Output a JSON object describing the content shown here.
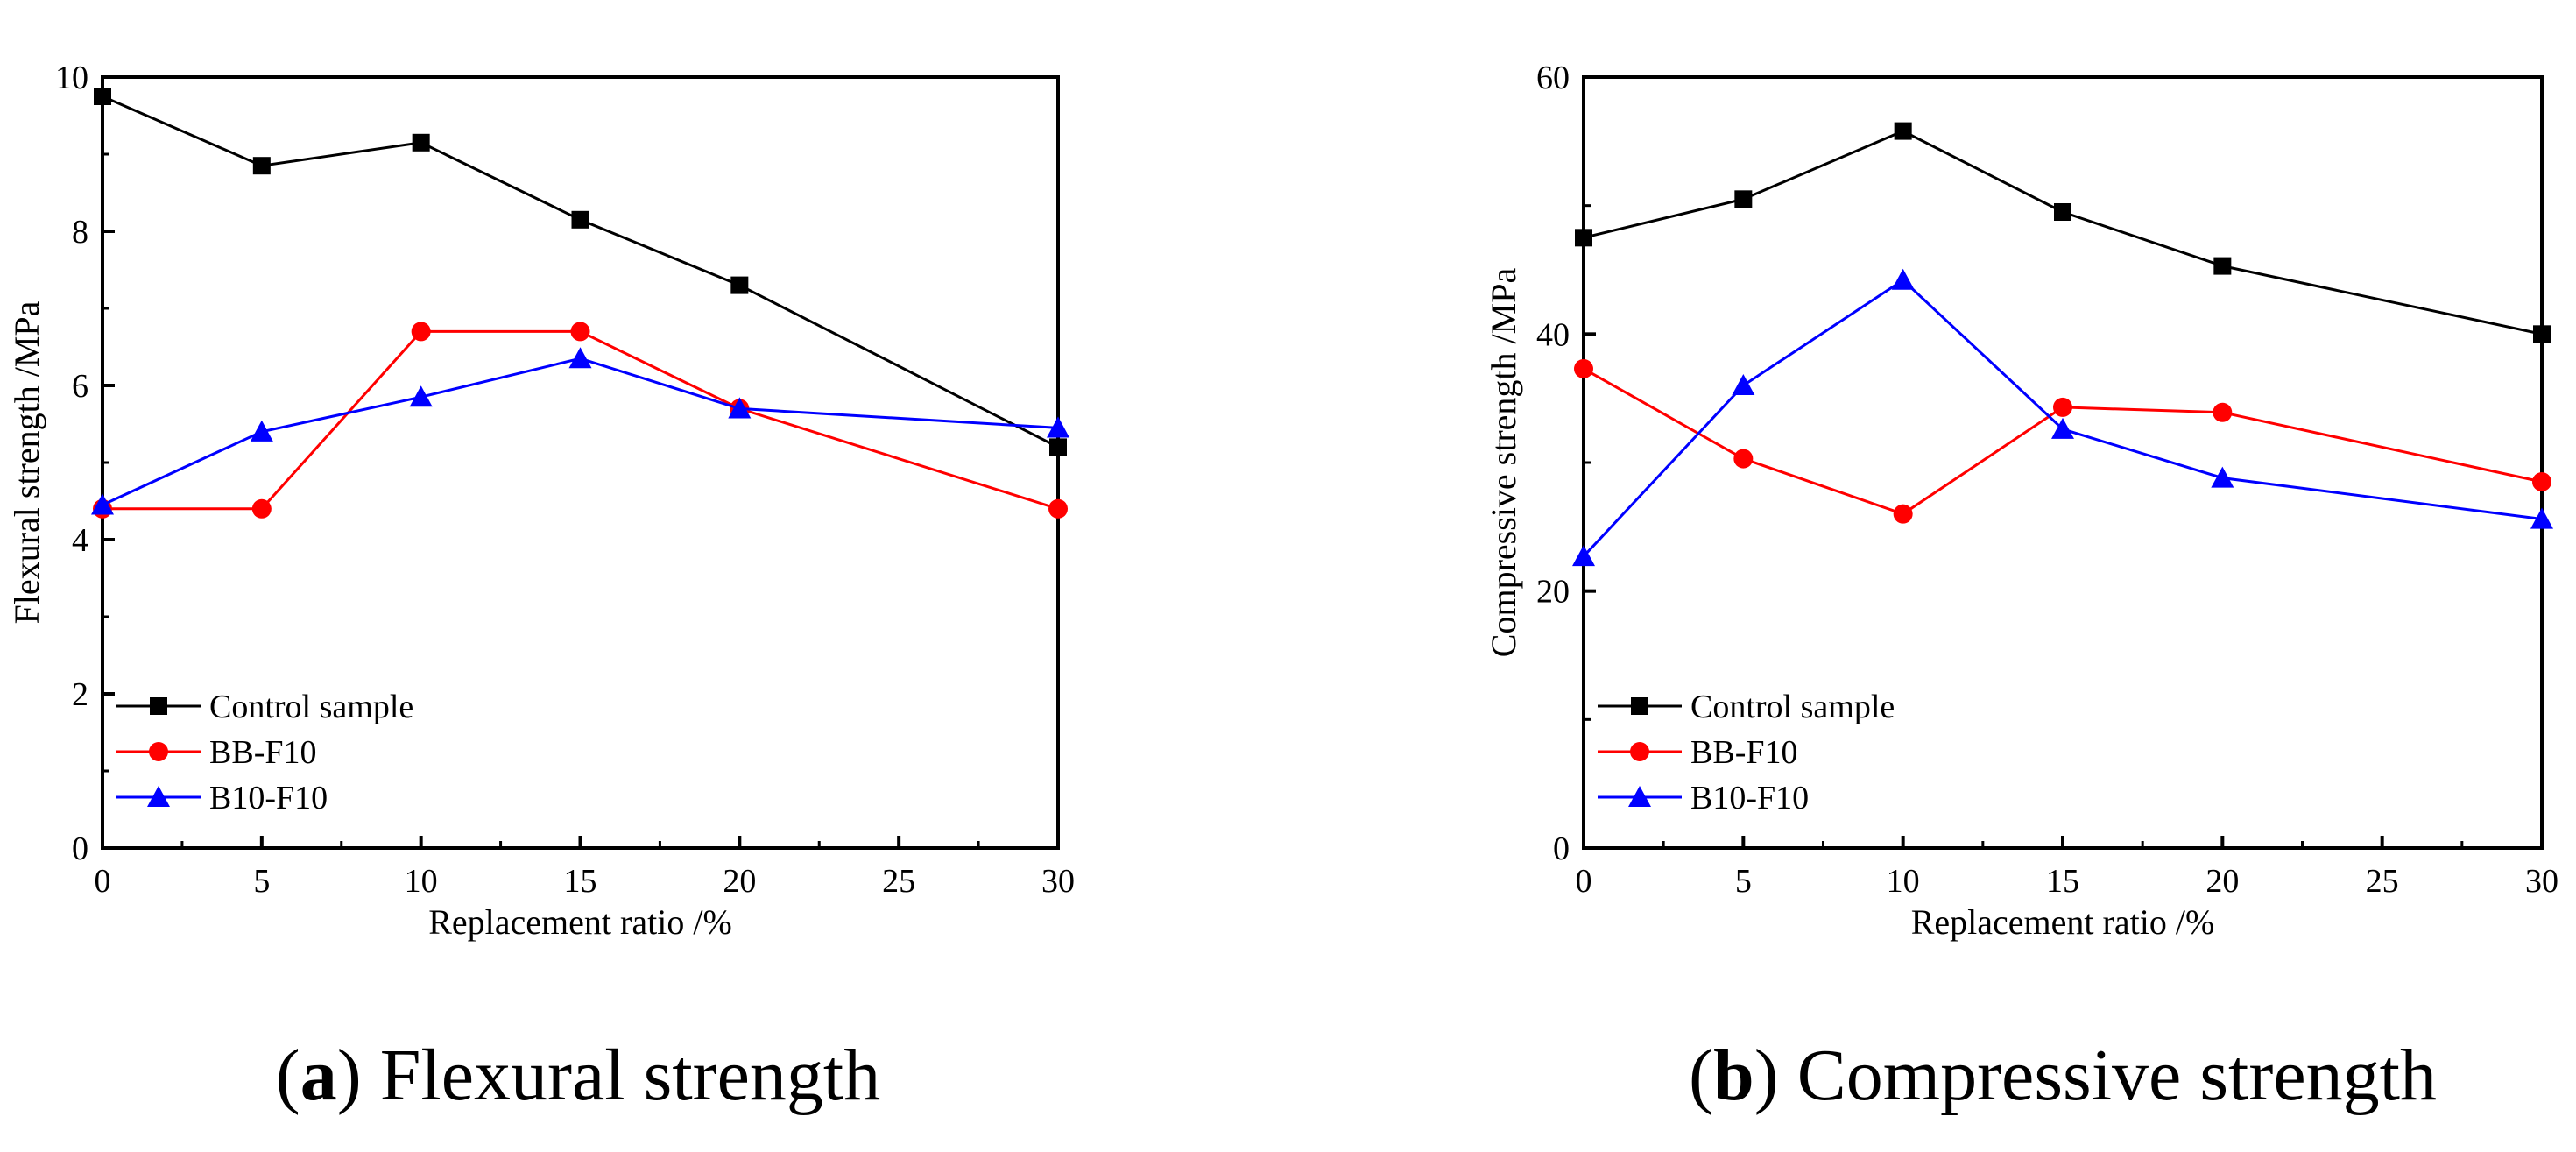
{
  "chart_data": [
    {
      "type": "line",
      "title": "",
      "xlabel": "Replacement ratio  /%",
      "ylabel": "Flexural strength /MPa",
      "xlim": [
        0,
        30
      ],
      "ylim": [
        0,
        10
      ],
      "xticks": [
        0,
        5,
        10,
        15,
        20,
        25,
        30
      ],
      "yticks": [
        0,
        2,
        4,
        6,
        8,
        10
      ],
      "x": [
        0,
        5,
        10,
        15,
        20,
        30
      ],
      "series": [
        {
          "name": "Control sample",
          "marker": "square",
          "color": "#000000",
          "values": [
            9.75,
            8.85,
            9.15,
            8.15,
            7.3,
            5.2
          ]
        },
        {
          "name": "BB-F10",
          "marker": "circle",
          "color": "#ff0000",
          "values": [
            4.4,
            4.4,
            6.7,
            6.7,
            5.7,
            4.4
          ]
        },
        {
          "name": "B10-F10",
          "marker": "triangle",
          "color": "#0000ff",
          "values": [
            4.45,
            5.4,
            5.85,
            6.35,
            5.7,
            5.45
          ]
        }
      ],
      "legend": "bottom-left",
      "caption": {
        "letter": "a",
        "text": "Flexural strength"
      }
    },
    {
      "type": "line",
      "title": "",
      "xlabel": "Replacement ratio  /%",
      "ylabel": "Compressive strength /MPa",
      "xlim": [
        0,
        30
      ],
      "ylim": [
        0,
        60
      ],
      "xticks": [
        0,
        5,
        10,
        15,
        20,
        25,
        30
      ],
      "yticks": [
        0,
        20,
        40,
        60
      ],
      "x": [
        0,
        5,
        10,
        15,
        20,
        30
      ],
      "series": [
        {
          "name": "Control sample",
          "marker": "square",
          "color": "#000000",
          "values": [
            47.5,
            50.5,
            55.8,
            49.5,
            45.3,
            40.0
          ]
        },
        {
          "name": "BB-F10",
          "marker": "circle",
          "color": "#ff0000",
          "values": [
            37.3,
            30.3,
            26.0,
            34.3,
            33.9,
            28.5
          ]
        },
        {
          "name": "B10-F10",
          "marker": "triangle",
          "color": "#0000ff",
          "values": [
            22.7,
            36.0,
            44.2,
            32.6,
            28.8,
            25.6
          ]
        }
      ],
      "legend": "bottom-left",
      "caption": {
        "letter": "b",
        "text": "Compressive strength"
      }
    }
  ]
}
